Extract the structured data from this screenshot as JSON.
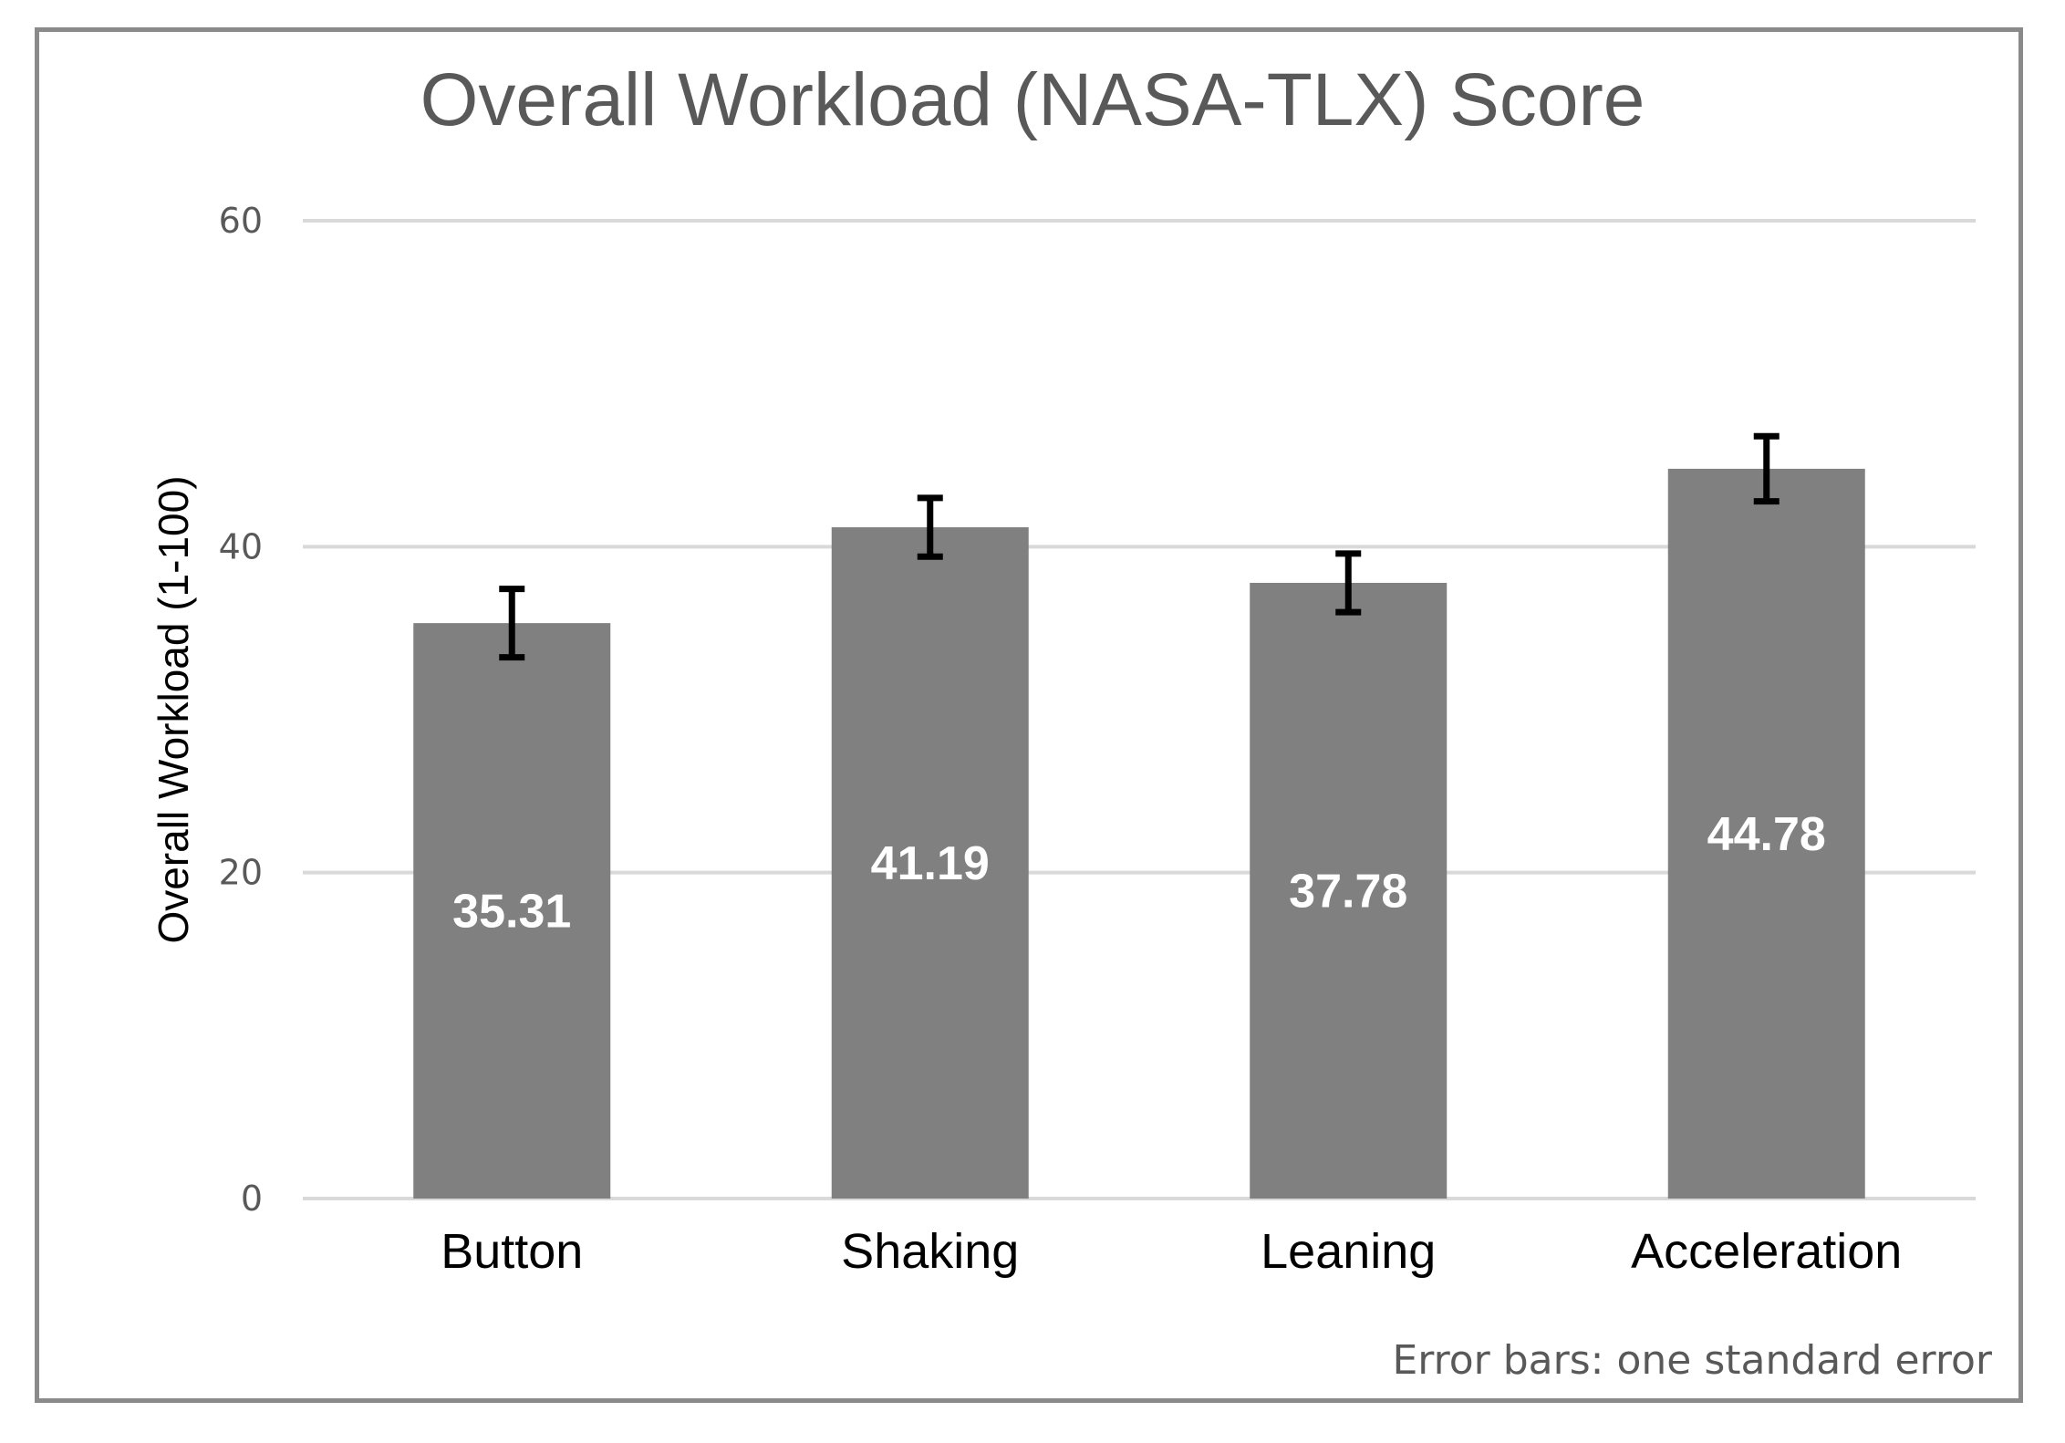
{
  "chart_data": {
    "type": "bar",
    "title": "Overall Workload (NASA-TLX) Score",
    "xlabel": "",
    "ylabel": "Overall Workload (1-100)",
    "categories": [
      "Button",
      "Shaking",
      "Leaning",
      "Acceleration"
    ],
    "values": [
      35.31,
      41.19,
      37.78,
      44.78
    ],
    "value_labels": [
      "35.31",
      "41.19",
      "37.78",
      "44.78"
    ],
    "error_bars": [
      2.1,
      1.8,
      1.8,
      2.0
    ],
    "ylim": [
      0,
      60
    ],
    "yticks": [
      0,
      20,
      40,
      60
    ],
    "ytick_labels": [
      "0",
      "20",
      "40",
      "60"
    ],
    "grid": true,
    "legend": "none",
    "note": "Error bars: one standard error",
    "colors": {
      "bar": "#808080",
      "error_bar": "#000000",
      "grid": "#d9d9d9",
      "frame": "#8a8a8a"
    }
  }
}
